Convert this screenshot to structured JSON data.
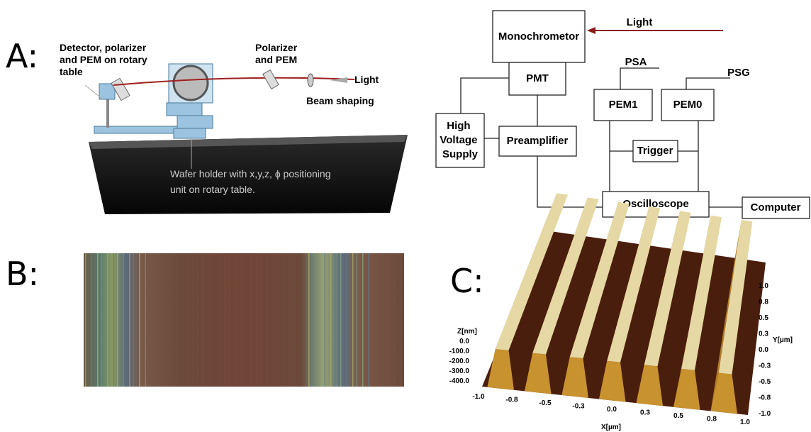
{
  "panel_a": {
    "label": "A:",
    "detector_label": [
      "Detector, polarizer",
      "and PEM on rotary",
      "table"
    ],
    "polarizer_label": [
      "Polarizer",
      "and PEM"
    ],
    "light_label": "Light",
    "beam_label": "Beam shaping",
    "holder_label": [
      "Wafer holder with x,y,z, ϕ positioning",
      "unit on rotary table."
    ]
  },
  "block_diagram": {
    "light": "Light",
    "monochromator": "Monochrometor",
    "pmt": "PMT",
    "psa": "PSA",
    "psg": "PSG",
    "pem1": "PEM1",
    "pem0": "PEM0",
    "hv_supply": [
      "High",
      "Voltage",
      "Supply"
    ],
    "preamplifier": "Preamplifier",
    "trigger": "Trigger",
    "oscilloscope": "Oscilloscope",
    "computer": "Computer"
  },
  "panel_b": {
    "label": "B:"
  },
  "panel_c": {
    "label": "C:",
    "z_title": "Z[nm]",
    "z_ticks": [
      "0.0",
      "-100.0",
      "-200.0",
      "-300.0",
      "-400.0"
    ],
    "x_ticks": [
      "-1.0",
      "-0.8",
      "-0.5",
      "-0.3",
      "0.0",
      "0.3",
      "0.5",
      "0.8",
      "1.0"
    ],
    "x_title": "X[µm]",
    "y_ticks": [
      "1.0",
      "0.8",
      "0.5",
      "0.3",
      "0.0",
      "-0.3",
      "-0.5",
      "-0.8",
      "-1.0"
    ],
    "y_title": "Y[µm]"
  }
}
